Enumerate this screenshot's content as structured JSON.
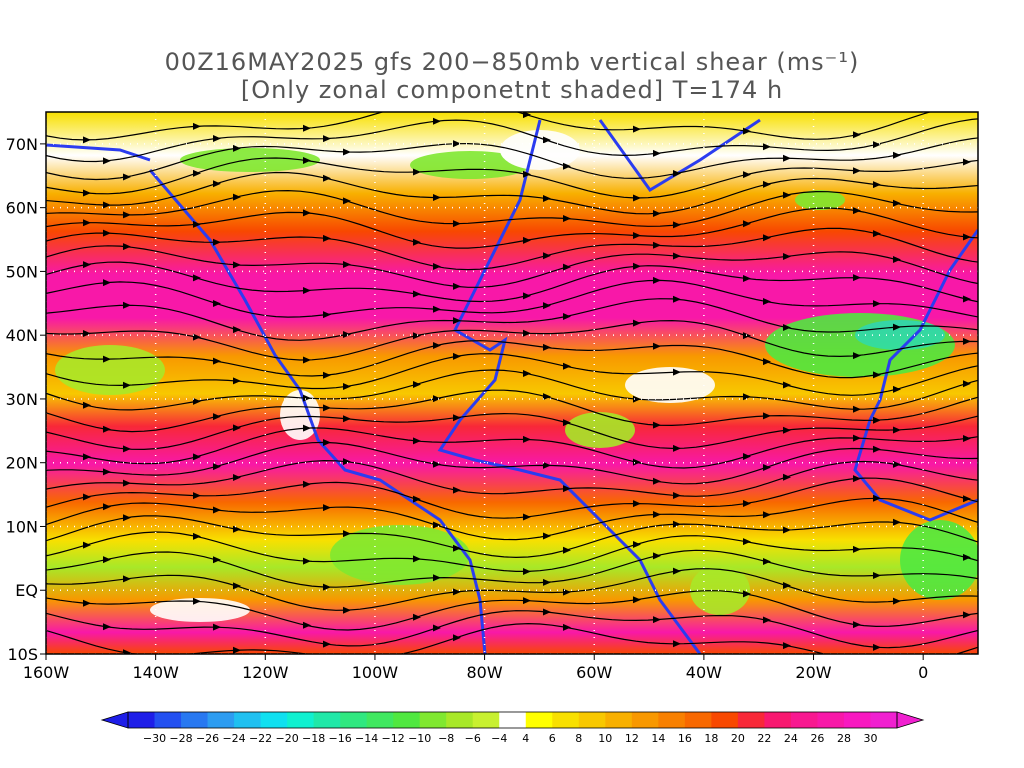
{
  "title": {
    "line1": "00Z16MAY2025 gfs 200−850mb vertical shear (ms⁻¹)",
    "line2": "[Only zonal componetnt shaded] T=174 h"
  },
  "map": {
    "lon_range": [
      -160,
      10
    ],
    "lat_range": [
      -10,
      75
    ],
    "lat_ticks": [
      {
        "value": 70,
        "label": "70N"
      },
      {
        "value": 60,
        "label": "60N"
      },
      {
        "value": 50,
        "label": "50N"
      },
      {
        "value": 40,
        "label": "40N"
      },
      {
        "value": 30,
        "label": "30N"
      },
      {
        "value": 20,
        "label": "20N"
      },
      {
        "value": 10,
        "label": "10N"
      },
      {
        "value": 0,
        "label": "EQ"
      },
      {
        "value": -10,
        "label": "10S"
      }
    ],
    "lon_ticks": [
      {
        "value": -160,
        "label": "160W"
      },
      {
        "value": -140,
        "label": "140W"
      },
      {
        "value": -120,
        "label": "120W"
      },
      {
        "value": -100,
        "label": "100W"
      },
      {
        "value": -80,
        "label": "80W"
      },
      {
        "value": -60,
        "label": "60W"
      },
      {
        "value": -40,
        "label": "40W"
      },
      {
        "value": -20,
        "label": "20W"
      },
      {
        "value": 0,
        "label": "0"
      }
    ],
    "shear_bands": [
      {
        "lat": 72,
        "level": "mixed"
      },
      {
        "lat": 62,
        "level": "moderate"
      },
      {
        "lat": 45,
        "level": "strong"
      },
      {
        "lat": 33,
        "level": "moderate"
      },
      {
        "lat": 25,
        "level": "strong"
      },
      {
        "lat": 15,
        "level": "strong"
      },
      {
        "lat": 5,
        "level": "weak"
      },
      {
        "lat": -5,
        "level": "strong"
      }
    ]
  },
  "colorbar": {
    "labels": [
      "−30",
      "−28",
      "−26",
      "−24",
      "−22",
      "−20",
      "−18",
      "−16",
      "−14",
      "−12",
      "−10",
      "−8",
      "−6",
      "−4",
      "4",
      "6",
      "8",
      "10",
      "12",
      "14",
      "16",
      "18",
      "20",
      "22",
      "24",
      "26",
      "28",
      "30"
    ],
    "colors": [
      "#1e1ee8",
      "#2350f0",
      "#2878f0",
      "#2d9cf0",
      "#20c0f0",
      "#10e0f0",
      "#10f0d0",
      "#20e8a8",
      "#30e880",
      "#40e860",
      "#50e840",
      "#80e830",
      "#a8e828",
      "#c8f030",
      "#ffffff",
      "#ffff00",
      "#f8e000",
      "#f8c800",
      "#f8b000",
      "#f89800",
      "#f88000",
      "#f86800",
      "#f84800",
      "#f82838",
      "#f81870",
      "#f81890",
      "#f818a8",
      "#f818c0",
      "#f020d0"
    ]
  }
}
